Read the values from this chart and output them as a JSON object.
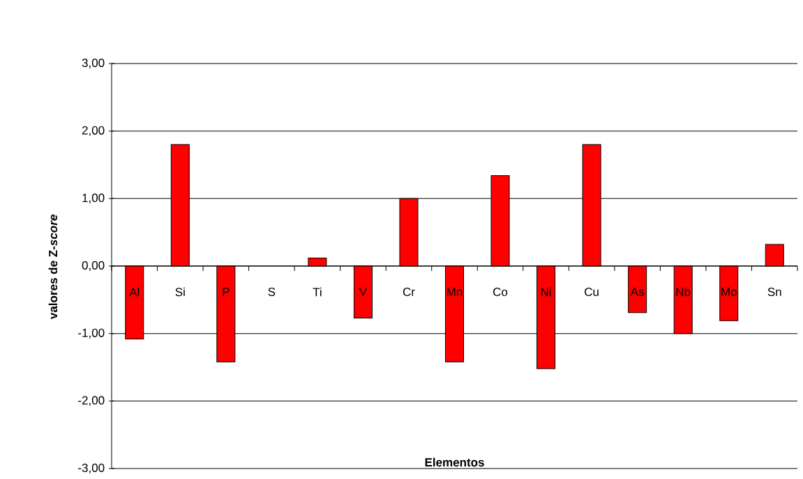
{
  "chart_data": {
    "type": "bar",
    "xlabel": "Elementos",
    "ylabel": "valores de Z-*score*",
    "categories": [
      "Al",
      "Si",
      "P",
      "S",
      "Ti",
      "V",
      "Cr",
      "Mn",
      "Co",
      "Ni",
      "Cu",
      "As",
      "Nb",
      "Mo",
      "Sn"
    ],
    "values": [
      -1.08,
      1.8,
      -1.42,
      null,
      0.12,
      -0.77,
      1.0,
      -1.42,
      1.34,
      -1.52,
      1.8,
      -0.69,
      -1.0,
      -0.81,
      0.32
    ],
    "color": "#ff0000",
    "ylim": [
      -3,
      3
    ],
    "yticks": [
      {
        "value": -3,
        "label": "-3,00"
      },
      {
        "value": -2,
        "label": "-2,00"
      },
      {
        "value": -1,
        "label": "-1,00"
      },
      {
        "value": 0,
        "label": "0,00"
      },
      {
        "value": 1,
        "label": "1,00"
      },
      {
        "value": 2,
        "label": "2,00"
      },
      {
        "value": 3,
        "label": "3,00"
      }
    ],
    "grid": "y"
  }
}
